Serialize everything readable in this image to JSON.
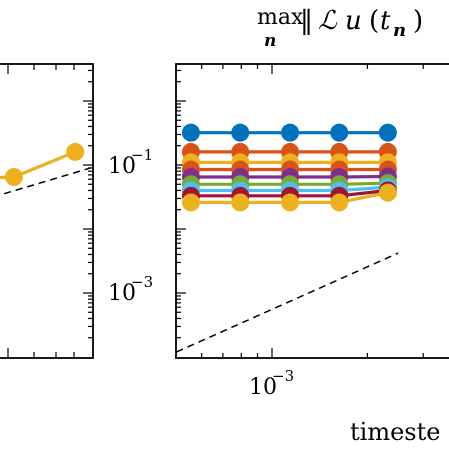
{
  "chart_data": [
    {
      "type": "line",
      "panel": "left (partially cropped)",
      "xscale": "log",
      "yscale": "log",
      "grid": false,
      "series": [
        {
          "name": "",
          "color": "#EDB120",
          "points": [
            [
              0.6,
              0.06
            ],
            [
              1.0,
              0.065
            ],
            [
              1.6,
              0.16
            ]
          ]
        }
      ],
      "reference_line": {
        "style": "dashed",
        "color": "#000000",
        "points": [
          [
            0.5,
            0.015
          ],
          [
            1.8,
            0.09
          ]
        ]
      }
    },
    {
      "type": "line",
      "panel": "right (partially cropped)",
      "title_parts": {
        "max": "max",
        "n": "n",
        "norm_open": "‖",
        "op": "ℒ",
        "u": "u",
        "paren_open": "(",
        "t": "t",
        "t_sub": "n",
        "paren_close": ")"
      },
      "xlabel": "timeste",
      "xscale": "log",
      "yscale": "log",
      "x_tick_labels": [
        {
          "value": 0.001,
          "base": "10",
          "exp": "−3"
        }
      ],
      "y_tick_labels": [
        {
          "value": 0.1,
          "base": "10",
          "exp": "−1"
        },
        {
          "value": 0.001,
          "base": "10",
          "exp": "−3"
        }
      ],
      "ylim": [
        0.00012,
        2.5
      ],
      "grid": false,
      "x": [
        0.000555,
        0.000794,
        0.00114,
        0.00163,
        0.00232
      ],
      "series": [
        {
          "name": "",
          "color": "#0072BD",
          "values": [
            0.32,
            0.32,
            0.32,
            0.32,
            0.32
          ]
        },
        {
          "name": "",
          "color": "#D95319",
          "values": [
            0.16,
            0.16,
            0.16,
            0.16,
            0.16
          ]
        },
        {
          "name": "",
          "color": "#EDB120",
          "values": [
            0.11,
            0.11,
            0.11,
            0.11,
            0.11
          ]
        },
        {
          "name": "",
          "color": "#D95319",
          "values": [
            0.085,
            0.085,
            0.085,
            0.085,
            0.085
          ]
        },
        {
          "name": "",
          "color": "#7E2F8E",
          "values": [
            0.065,
            0.065,
            0.065,
            0.065,
            0.066
          ]
        },
        {
          "name": "",
          "color": "#77AC30",
          "values": [
            0.05,
            0.05,
            0.05,
            0.05,
            0.052
          ]
        },
        {
          "name": "",
          "color": "#4DBEEE",
          "values": [
            0.04,
            0.04,
            0.04,
            0.04,
            0.045
          ]
        },
        {
          "name": "",
          "color": "#A2142F",
          "values": [
            0.033,
            0.033,
            0.033,
            0.033,
            0.04
          ]
        },
        {
          "name": "",
          "color": "#EDB120",
          "values": [
            0.026,
            0.026,
            0.026,
            0.026,
            0.037
          ]
        }
      ],
      "reference_line": {
        "style": "dashed",
        "color": "#000000",
        "points": [
          [
            0.0005,
            0.00012
          ],
          [
            0.0025,
            0.0042
          ]
        ]
      }
    }
  ]
}
